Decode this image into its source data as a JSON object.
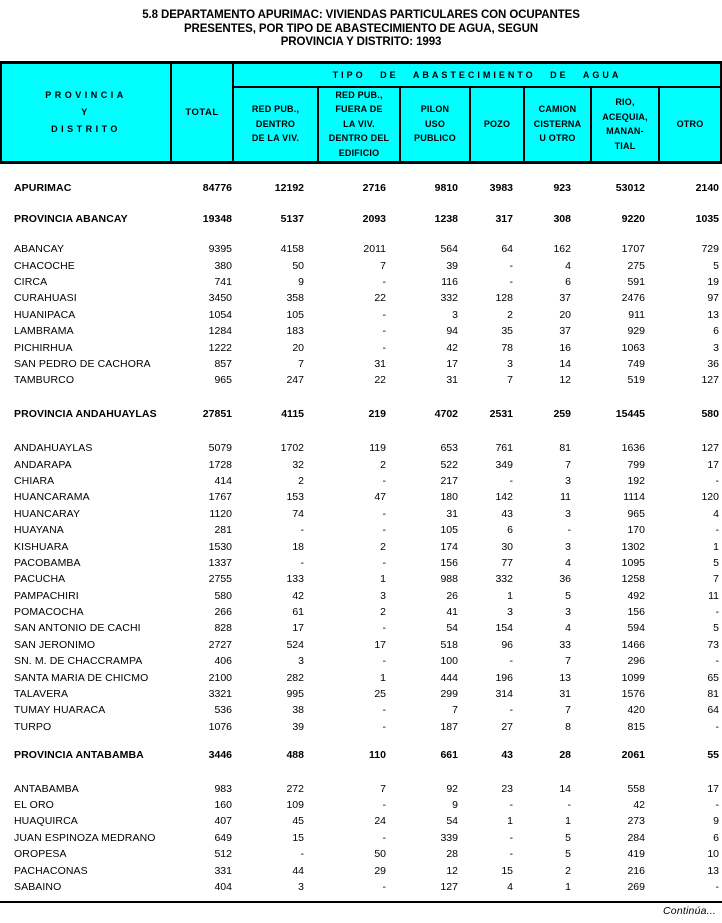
{
  "title": {
    "lines": [
      "5.8   DEPARTAMENTO APURIMAC: VIVIENDAS PARTICULARES CON OCUPANTES",
      "PRESENTES, POR TIPO DE ABASTECIMIENTO DE AGUA, SEGUN",
      "PROVINCIA Y DISTRITO: 1993"
    ]
  },
  "header": {
    "header_bg": "#00ffff",
    "col_provincia_lines": [
      "PROVINCIA",
      "Y",
      "DISTRITO"
    ],
    "col_total": "TOTAL",
    "span_title": "TIPO DE ABASTECIMIENTO DE AGUA",
    "sub_columns": [
      {
        "lines": [
          "RED PUB.,",
          "DENTRO",
          "DE LA VIV."
        ]
      },
      {
        "lines": [
          "RED PUB.,",
          "FUERA DE",
          "LA VIV.",
          "DENTRO DEL",
          "EDIFICIO"
        ]
      },
      {
        "lines": [
          "PILON",
          "USO",
          "PUBLICO"
        ]
      },
      {
        "lines": [
          "POZO"
        ]
      },
      {
        "lines": [
          "CAMION",
          "CISTERNA",
          "U OTRO"
        ]
      },
      {
        "lines": [
          "RIO,",
          "ACEQUIA,",
          "MANAN-",
          "TIAL"
        ]
      },
      {
        "lines": [
          "OTRO"
        ]
      }
    ]
  },
  "table": {
    "department": {
      "name": "APURIMAC",
      "values": [
        "84776",
        "12192",
        "2716",
        "9810",
        "3983",
        "923",
        "53012",
        "2140"
      ]
    },
    "sections": [
      {
        "header": {
          "name": "PROVINCIA ABANCAY",
          "values": [
            "19348",
            "5137",
            "2093",
            "1238",
            "317",
            "308",
            "9220",
            "1035"
          ]
        },
        "rows": [
          {
            "name": "ABANCAY",
            "values": [
              "9395",
              "4158",
              "2011",
              "564",
              "64",
              "162",
              "1707",
              "729"
            ]
          },
          {
            "name": "CHACOCHE",
            "values": [
              "380",
              "50",
              "7",
              "39",
              "-",
              "4",
              "275",
              "5"
            ]
          },
          {
            "name": "CIRCA",
            "values": [
              "741",
              "9",
              "-",
              "116",
              "-",
              "6",
              "591",
              "19"
            ]
          },
          {
            "name": "CURAHUASI",
            "values": [
              "3450",
              "358",
              "22",
              "332",
              "128",
              "37",
              "2476",
              "97"
            ]
          },
          {
            "name": "HUANIPACA",
            "values": [
              "1054",
              "105",
              "-",
              "3",
              "2",
              "20",
              "911",
              "13"
            ]
          },
          {
            "name": "LAMBRAMA",
            "values": [
              "1284",
              "183",
              "-",
              "94",
              "35",
              "37",
              "929",
              "6"
            ]
          },
          {
            "name": "PICHIRHUA",
            "values": [
              "1222",
              "20",
              "-",
              "42",
              "78",
              "16",
              "1063",
              "3"
            ]
          },
          {
            "name": "SAN PEDRO DE CACHORA",
            "values": [
              "857",
              "7",
              "31",
              "17",
              "3",
              "14",
              "749",
              "36"
            ]
          },
          {
            "name": "TAMBURCO",
            "values": [
              "965",
              "247",
              "22",
              "31",
              "7",
              "12",
              "519",
              "127"
            ]
          }
        ]
      },
      {
        "header": {
          "name": "PROVINCIA ANDAHUAYLAS",
          "values": [
            "27851",
            "4115",
            "219",
            "4702",
            "2531",
            "259",
            "15445",
            "580"
          ]
        },
        "rows": [
          {
            "name": "ANDAHUAYLAS",
            "values": [
              "5079",
              "1702",
              "119",
              "653",
              "761",
              "81",
              "1636",
              "127"
            ]
          },
          {
            "name": "ANDARAPA",
            "values": [
              "1728",
              "32",
              "2",
              "522",
              "349",
              "7",
              "799",
              "17"
            ]
          },
          {
            "name": "CHIARA",
            "values": [
              "414",
              "2",
              "-",
              "217",
              "-",
              "3",
              "192",
              "-"
            ]
          },
          {
            "name": "HUANCARAMA",
            "values": [
              "1767",
              "153",
              "47",
              "180",
              "142",
              "11",
              "1114",
              "120"
            ]
          },
          {
            "name": "HUANCARAY",
            "values": [
              "1120",
              "74",
              "-",
              "31",
              "43",
              "3",
              "965",
              "4"
            ]
          },
          {
            "name": "HUAYANA",
            "values": [
              "281",
              "-",
              "-",
              "105",
              "6",
              "-",
              "170",
              "-"
            ]
          },
          {
            "name": "KISHUARA",
            "values": [
              "1530",
              "18",
              "2",
              "174",
              "30",
              "3",
              "1302",
              "1"
            ]
          },
          {
            "name": "PACOBAMBA",
            "values": [
              "1337",
              "-",
              "-",
              "156",
              "77",
              "4",
              "1095",
              "5"
            ]
          },
          {
            "name": "PACUCHA",
            "values": [
              "2755",
              "133",
              "1",
              "988",
              "332",
              "36",
              "1258",
              "7"
            ]
          },
          {
            "name": "PAMPACHIRI",
            "values": [
              "580",
              "42",
              "3",
              "26",
              "1",
              "5",
              "492",
              "11"
            ]
          },
          {
            "name": "POMACOCHA",
            "values": [
              "266",
              "61",
              "2",
              "41",
              "3",
              "3",
              "156",
              "-"
            ]
          },
          {
            "name": "SAN ANTONIO DE CACHI",
            "values": [
              "828",
              "17",
              "-",
              "54",
              "154",
              "4",
              "594",
              "5"
            ]
          },
          {
            "name": "SAN JERONIMO",
            "values": [
              "2727",
              "524",
              "17",
              "518",
              "96",
              "33",
              "1466",
              "73"
            ]
          },
          {
            "name": "SN. M. DE CHACCRAMPA",
            "values": [
              "406",
              "3",
              "-",
              "100",
              "-",
              "7",
              "296",
              "-"
            ]
          },
          {
            "name": "SANTA MARIA DE CHICMO",
            "values": [
              "2100",
              "282",
              "1",
              "444",
              "196",
              "13",
              "1099",
              "65"
            ]
          },
          {
            "name": "TALAVERA",
            "values": [
              "3321",
              "995",
              "25",
              "299",
              "314",
              "31",
              "1576",
              "81"
            ]
          },
          {
            "name": "TUMAY HUARACA",
            "values": [
              "536",
              "38",
              "-",
              "7",
              "-",
              "7",
              "420",
              "64"
            ]
          },
          {
            "name": "TURPO",
            "values": [
              "1076",
              "39",
              "-",
              "187",
              "27",
              "8",
              "815",
              "-"
            ]
          }
        ]
      },
      {
        "header": {
          "name": "PROVINCIA ANTABAMBA",
          "values": [
            "3446",
            "488",
            "110",
            "661",
            "43",
            "28",
            "2061",
            "55"
          ]
        },
        "rows": [
          {
            "name": "ANTABAMBA",
            "values": [
              "983",
              "272",
              "7",
              "92",
              "23",
              "14",
              "558",
              "17"
            ]
          },
          {
            "name": "EL ORO",
            "values": [
              "160",
              "109",
              "-",
              "9",
              "-",
              "-",
              "42",
              "-"
            ]
          },
          {
            "name": "HUAQUIRCA",
            "values": [
              "407",
              "45",
              "24",
              "54",
              "1",
              "1",
              "273",
              "9"
            ]
          },
          {
            "name": "JUAN ESPINOZA MEDRANO",
            "values": [
              "649",
              "15",
              "-",
              "339",
              "-",
              "5",
              "284",
              "6"
            ]
          },
          {
            "name": "OROPESA",
            "values": [
              "512",
              "-",
              "50",
              "28",
              "-",
              "5",
              "419",
              "10"
            ]
          },
          {
            "name": "PACHACONAS",
            "values": [
              "331",
              "44",
              "29",
              "12",
              "15",
              "2",
              "216",
              "13"
            ]
          },
          {
            "name": "SABAINO",
            "values": [
              "404",
              "3",
              "-",
              "127",
              "4",
              "1",
              "269",
              "-"
            ]
          }
        ]
      }
    ]
  },
  "footer": {
    "continua": "Continúa..."
  }
}
